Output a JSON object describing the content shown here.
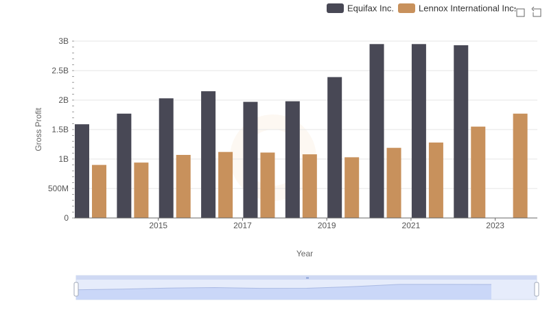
{
  "toolbar": {
    "zoom_icon": "zoom-area-icon",
    "restore_icon": "restore-icon"
  },
  "chart_data": {
    "type": "bar",
    "x": [
      2014,
      2015,
      2016,
      2017,
      2018,
      2019,
      2020,
      2021,
      2022,
      2023,
      2024
    ],
    "xticks": [
      "2015",
      "2017",
      "2019",
      "2021",
      "2023"
    ],
    "xlabel": "Year",
    "ylabel": "Gross Profit",
    "yticks": [
      "0",
      "500M",
      "1B",
      "1.5B",
      "2B",
      "2.5B",
      "3B"
    ],
    "ylim": [
      0,
      3000000000
    ],
    "grid": true,
    "legend_position": "top-right",
    "series": [
      {
        "name": "Equifax Inc.",
        "color": "#484855",
        "values": [
          1590000000,
          1770000000,
          2030000000,
          2150000000,
          1970000000,
          1980000000,
          2390000000,
          2950000000,
          2950000000,
          2930000000,
          null
        ]
      },
      {
        "name": "Lennox International Inc.",
        "color": "#c8915c",
        "values": [
          900000000,
          940000000,
          1070000000,
          1120000000,
          1110000000,
          1080000000,
          1030000000,
          1190000000,
          1280000000,
          1550000000,
          1770000000
        ]
      }
    ],
    "data_zoom": {
      "range_start": 0,
      "range_end": 1,
      "preview_series": "Equifax Inc."
    }
  }
}
